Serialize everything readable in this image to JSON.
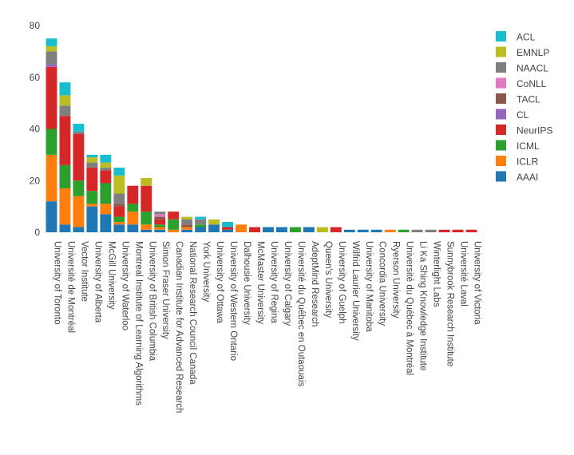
{
  "chart_data": {
    "type": "bar",
    "stacked": true,
    "title": "",
    "xlabel": "",
    "ylabel": "",
    "ylim": [
      0,
      80
    ],
    "yticks": [
      0,
      20,
      40,
      60,
      80
    ],
    "grid": false,
    "legend_position": "top-right",
    "categories": [
      "University of Toronto",
      "Université de Montréal",
      "Vector Institute",
      "University of Alberta",
      "McGill University",
      "University of Waterloo",
      "Montreal Institute of Learning Algorithms",
      "University of British Columbia",
      "Simon Fraser University",
      "Canadian Institute for Advanced Research",
      "National Research Council Canada",
      "York University",
      "University of Ottawa",
      "University of Western Ontario",
      "Dalhousie University",
      "McMaster University",
      "University of Regina",
      "University of Calgary",
      "Université du Québec en Outaouais",
      "AdeptMind Research",
      "Queen's University",
      "University of Guelph",
      "Wilfrid Laurier University",
      "University of Manitoba",
      "Concordia University",
      "Ryerson University",
      "Université du Québec à Montréal",
      "Li Ka Shing Knowledge Institute",
      "Winterlight Labs",
      "Sunnybrook Research Institute",
      "Université Laval",
      "University of Victoria"
    ],
    "series": [
      {
        "name": "AAAI",
        "color": "#1f77b4",
        "values": [
          12,
          3,
          2,
          10,
          7,
          3,
          3,
          1,
          1,
          0,
          1,
          2,
          3,
          1,
          0,
          0,
          2,
          2,
          0,
          2,
          0,
          0,
          1,
          1,
          1,
          0,
          0,
          0,
          0,
          0,
          0,
          0
        ]
      },
      {
        "name": "ICLR",
        "color": "#ff7f0e",
        "values": [
          18,
          14,
          12,
          1,
          4,
          1,
          5,
          2,
          1,
          1,
          1,
          0,
          0,
          0,
          3,
          0,
          0,
          0,
          0,
          0,
          0,
          0,
          0,
          0,
          0,
          1,
          0,
          0,
          0,
          0,
          0,
          0
        ]
      },
      {
        "name": "ICML",
        "color": "#2ca02c",
        "values": [
          10,
          9,
          6,
          5,
          8,
          2,
          3,
          5,
          1,
          4,
          0,
          1,
          0,
          0,
          0,
          0,
          0,
          0,
          2,
          0,
          0,
          0,
          0,
          0,
          0,
          0,
          1,
          0,
          0,
          0,
          0,
          0
        ]
      },
      {
        "name": "NeurIPS",
        "color": "#d62728",
        "values": [
          24,
          19,
          18,
          9,
          5,
          4,
          7,
          10,
          2,
          3,
          0,
          0,
          0,
          1,
          0,
          2,
          0,
          0,
          0,
          0,
          0,
          2,
          0,
          0,
          0,
          0,
          0,
          0,
          0,
          1,
          1,
          1
        ]
      },
      {
        "name": "CL",
        "color": "#9467bd",
        "values": [
          1,
          0,
          0,
          0,
          0,
          0,
          0,
          0,
          0,
          0,
          0,
          0,
          0,
          0,
          0,
          0,
          0,
          0,
          0,
          0,
          0,
          0,
          0,
          0,
          0,
          0,
          0,
          0,
          0,
          0,
          0,
          0
        ]
      },
      {
        "name": "TACL",
        "color": "#8c564b",
        "values": [
          0,
          0,
          0,
          0,
          0,
          1,
          0,
          0,
          1,
          0,
          1,
          0,
          0,
          0,
          0,
          0,
          0,
          0,
          0,
          0,
          0,
          0,
          0,
          0,
          0,
          0,
          0,
          0,
          0,
          0,
          0,
          0
        ]
      },
      {
        "name": "CoNLL",
        "color": "#e377c2",
        "values": [
          0,
          0,
          0,
          0,
          0,
          0,
          0,
          0,
          1,
          0,
          0,
          0,
          0,
          0,
          0,
          0,
          0,
          0,
          0,
          0,
          0,
          0,
          0,
          0,
          0,
          0,
          0,
          0,
          0,
          0,
          0,
          0
        ]
      },
      {
        "name": "NAACL",
        "color": "#7f7f7f",
        "values": [
          5,
          4,
          1,
          2,
          1,
          4,
          0,
          0,
          1,
          0,
          2,
          2,
          0,
          0,
          0,
          0,
          0,
          0,
          0,
          0,
          0,
          0,
          0,
          0,
          0,
          0,
          0,
          1,
          1,
          0,
          0,
          0
        ]
      },
      {
        "name": "EMNLP",
        "color": "#bcbd22",
        "values": [
          2,
          4,
          0,
          2,
          2,
          7,
          0,
          3,
          0,
          0,
          1,
          0,
          2,
          0,
          0,
          0,
          0,
          0,
          0,
          0,
          2,
          0,
          0,
          0,
          0,
          0,
          0,
          0,
          0,
          0,
          0,
          0
        ]
      },
      {
        "name": "ACL",
        "color": "#17becf",
        "values": [
          3,
          5,
          3,
          1,
          3,
          3,
          0,
          0,
          0,
          0,
          0,
          1,
          0,
          2,
          0,
          0,
          0,
          0,
          0,
          0,
          0,
          0,
          0,
          0,
          0,
          0,
          0,
          0,
          0,
          0,
          0,
          0
        ]
      }
    ],
    "legend_order": [
      "ACL",
      "EMNLP",
      "NAACL",
      "CoNLL",
      "TACL",
      "CL",
      "NeurIPS",
      "ICML",
      "ICLR",
      "AAAI"
    ]
  }
}
